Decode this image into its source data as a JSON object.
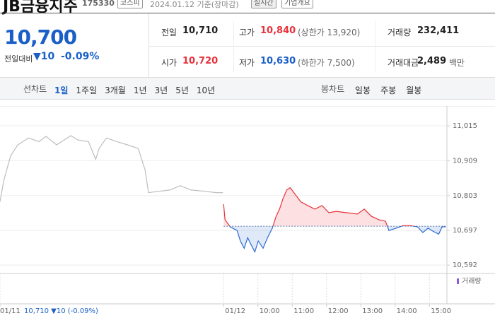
{
  "header": {
    "name": "JB금융지주",
    "code": "175330",
    "market": "코스피",
    "date": "2024.01.12 기준(장마감)",
    "realtime": "실시간",
    "company": "기업개요"
  },
  "quote": {
    "price": "10,700",
    "change_label": "전일대비",
    "change": "▼10",
    "change_pct": "-0.09%"
  },
  "stats": [
    {
      "label": "전일",
      "value": "10,710"
    },
    {
      "label": "고가",
      "value": "10,840",
      "note": "(상한가 13,920)"
    },
    {
      "label": "거래량",
      "value": "232,411"
    },
    {
      "label": "시가",
      "value": "10,720"
    },
    {
      "label": "저가",
      "value": "10,630",
      "note": "(하한가 7,500)"
    },
    {
      "label": "거래대금",
      "value": "2,489",
      "note": "백만"
    }
  ],
  "tabs": {
    "line": "선차트",
    "periods": [
      "1일",
      "1주일",
      "3개월",
      "1년",
      "3년",
      "5년",
      "10년"
    ],
    "selected": 0,
    "candle": "봉차트",
    "candle_periods": [
      "일봉",
      "주봉",
      "월봉"
    ]
  },
  "chart_data": {
    "type": "line",
    "baseline": 10710,
    "volume_label": "거래량",
    "prev_info": "10,710 ▼10 (-0.09%)",
    "xlim": [
      -6.52,
      6.51
    ],
    "ylim": [
      10575,
      11058
    ],
    "xticks": [
      {
        "value": -6.52,
        "label": "01/11"
      },
      {
        "value": 0,
        "label": "01/12"
      },
      {
        "value": 1,
        "label": "10:00"
      },
      {
        "value": 2,
        "label": "11:00"
      },
      {
        "value": 3,
        "label": "12:00"
      },
      {
        "value": 4,
        "label": "13:00"
      },
      {
        "value": 5,
        "label": "14:00"
      },
      {
        "value": 6,
        "label": "15:00"
      }
    ],
    "yticks": [
      {
        "value": 11015,
        "label": "11,015"
      },
      {
        "value": 10909,
        "label": "10,909"
      },
      {
        "value": 10803,
        "label": "10,803"
      },
      {
        "value": 10697,
        "label": "10,697"
      },
      {
        "value": 10592,
        "label": "10,592"
      }
    ],
    "series": [
      {
        "color": "#bdbdbd",
        "x": [
          -6.52,
          -6.41,
          -6.21,
          -6.0,
          -5.69,
          -5.38,
          -5.18,
          -4.87,
          -4.56,
          -4.45,
          -4.25,
          -3.94,
          -3.73,
          -3.63,
          -3.42,
          -3.11,
          -2.8,
          -2.49,
          -2.29,
          -2.19,
          -1.88,
          -1.57,
          -1.26,
          -0.95,
          -0.54,
          -0.23,
          -0.02
        ],
        "values": [
          10784,
          10848,
          10924,
          10957,
          10978,
          10967,
          10983,
          10957,
          10978,
          10985,
          10972,
          10967,
          10913,
          10946,
          10978,
          10967,
          10957,
          10946,
          10881,
          10812,
          10816,
          10820,
          10833,
          10820,
          10816,
          10812,
          10812
        ]
      },
      {
        "color": "#e8323c",
        "color_down": "#2d6bd3",
        "x": [
          0,
          0.04,
          0.19,
          0.39,
          0.49,
          0.6,
          0.7,
          0.8,
          0.91,
          1.01,
          1.15,
          1.28,
          1.42,
          1.53,
          1.63,
          1.73,
          1.84,
          1.94,
          2.1,
          2.25,
          2.45,
          2.66,
          2.87,
          3.07,
          3.28,
          3.59,
          3.9,
          4.1,
          4.31,
          4.52,
          4.72,
          4.82,
          5.03,
          5.24,
          5.44,
          5.65,
          5.81,
          5.96,
          6.1,
          6.27,
          6.37,
          6.47
        ],
        "values": [
          10777,
          10730,
          10708,
          10697,
          10665,
          10643,
          10675,
          10654,
          10632,
          10665,
          10643,
          10675,
          10704,
          10740,
          10762,
          10794,
          10820,
          10827,
          10805,
          10784,
          10773,
          10762,
          10773,
          10751,
          10755,
          10751,
          10747,
          10762,
          10740,
          10730,
          10725,
          10697,
          10704,
          10712,
          10712,
          10708,
          10691,
          10704,
          10695,
          10686,
          10708,
          10708
        ]
      }
    ]
  }
}
